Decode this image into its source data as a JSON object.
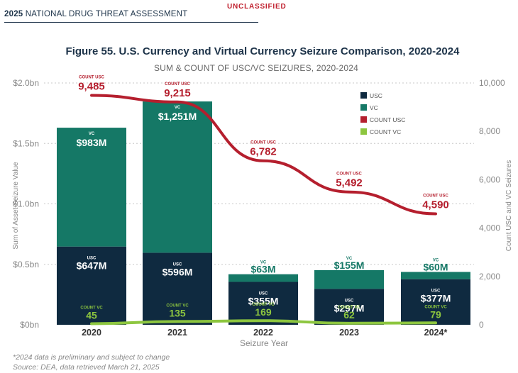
{
  "header": {
    "year": "2025",
    "report": "NATIONAL DRUG THREAT ASSESSMENT",
    "classification": "UNCLASSIFIED"
  },
  "colors": {
    "usc": "#0f2a40",
    "vc": "#157866",
    "count_usc": "#b51f2e",
    "count_vc": "#8dc63f"
  },
  "chart_data": {
    "type": "bar",
    "title": "Figure 55. U.S. Currency and Virtual Currency Seizure Comparison, 2020-2024",
    "subtitle": "SUM & COUNT OF USC/VC SEIZURES, 2020-2024",
    "xlabel": "Seizure Year",
    "ylabel": "Sum of Asset Seizure Value",
    "y2label": "Count USC and VC Seizures",
    "categories": [
      "2020",
      "2021",
      "2022",
      "2023",
      "2024*"
    ],
    "ylim": [
      0,
      2.0
    ],
    "y2lim": [
      0,
      10000
    ],
    "yticks": [
      "$0bn",
      "$0.5bn",
      "$1.0bn",
      "$1.5bn",
      "$2.0bn"
    ],
    "y2ticks": [
      "0",
      "2,000",
      "4,000",
      "6,000",
      "8,000",
      "10,000"
    ],
    "series": [
      {
        "name": "USC",
        "kind": "stacked-bar",
        "unit": "bn",
        "values": [
          0.647,
          0.596,
          0.355,
          0.297,
          0.377
        ],
        "labels": [
          "$647M",
          "$596M",
          "$355M",
          "$297M",
          "$377M"
        ],
        "tag": "USC"
      },
      {
        "name": "VC",
        "kind": "stacked-bar",
        "unit": "bn",
        "values": [
          0.983,
          1.251,
          0.063,
          0.155,
          0.06
        ],
        "labels": [
          "$983M",
          "$1,251M",
          "$63M",
          "$155M",
          "$60M"
        ],
        "tag": "VC"
      },
      {
        "name": "COUNT USC",
        "kind": "line",
        "axis": "secondary",
        "values": [
          9485,
          9215,
          6782,
          5492,
          4590
        ],
        "labels": [
          "9,485",
          "9,215",
          "6,782",
          "5,492",
          "4,590"
        ],
        "tag": "COUNT USC"
      },
      {
        "name": "COUNT VC",
        "kind": "line",
        "axis": "secondary",
        "values": [
          45,
          135,
          169,
          62,
          79
        ],
        "labels": [
          "45",
          "135",
          "169",
          "62",
          "79"
        ],
        "tag": "COUNT VC"
      }
    ],
    "legend": [
      "USC",
      "VC",
      "COUNT USC",
      "COUNT VC"
    ]
  },
  "footnotes": {
    "note": "*2024 data is preliminary and subject to change",
    "source": "Source: DEA, data retrieved March 21, 2025"
  }
}
